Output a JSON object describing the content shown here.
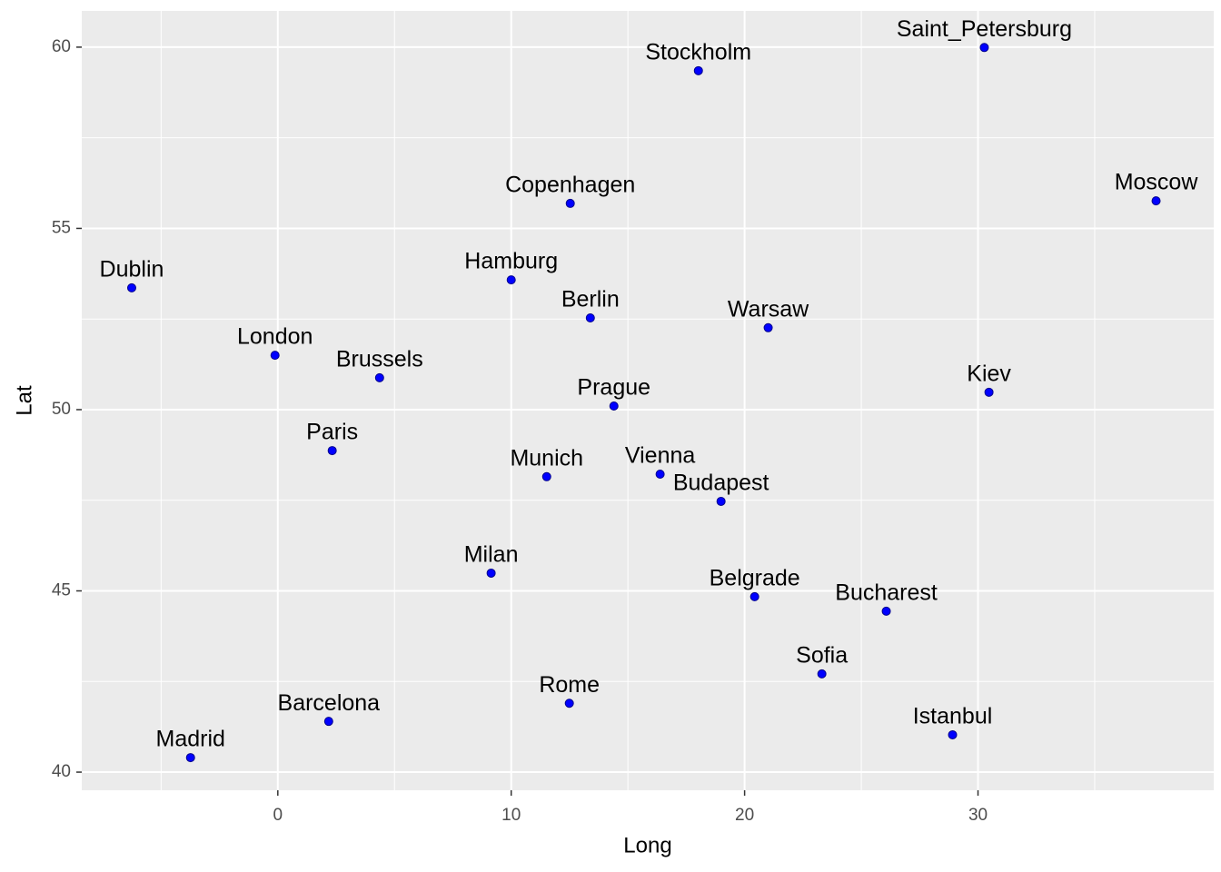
{
  "chart_data": {
    "type": "scatter",
    "x_label": "Long",
    "y_label": "Lat",
    "color": "#0000ff",
    "grid": true,
    "xlim": [
      -8.4,
      40.1
    ],
    "ylim": [
      39.5,
      61.0
    ],
    "xticks": [
      0,
      10,
      20,
      30
    ],
    "yticks": [
      40,
      45,
      50,
      55,
      60
    ],
    "labels": [
      "Stockholm",
      "Saint_Petersburg",
      "Copenhagen",
      "Moscow",
      "Dublin",
      "Hamburg",
      "Berlin",
      "Warsaw",
      "London",
      "Brussels",
      "Kiev",
      "Prague",
      "Paris",
      "Munich",
      "Vienna",
      "Budapest",
      "Milan",
      "Belgrade",
      "Bucharest",
      "Sofia",
      "Rome",
      "Barcelona",
      "Istanbul",
      "Madrid"
    ],
    "x": [
      18.02,
      30.27,
      12.53,
      37.63,
      -6.26,
      10.0,
      13.39,
      21.01,
      -0.12,
      4.36,
      30.47,
      14.4,
      2.33,
      11.52,
      16.38,
      18.99,
      9.14,
      20.43,
      26.07,
      23.31,
      12.49,
      2.18,
      28.91,
      -3.74
    ],
    "values": [
      59.35,
      59.99,
      55.69,
      55.76,
      53.36,
      53.58,
      52.53,
      52.26,
      51.5,
      50.88,
      50.48,
      50.1,
      48.87,
      48.15,
      48.22,
      47.47,
      45.49,
      44.84,
      44.44,
      42.71,
      41.9,
      41.4,
      41.03,
      40.4
    ]
  }
}
